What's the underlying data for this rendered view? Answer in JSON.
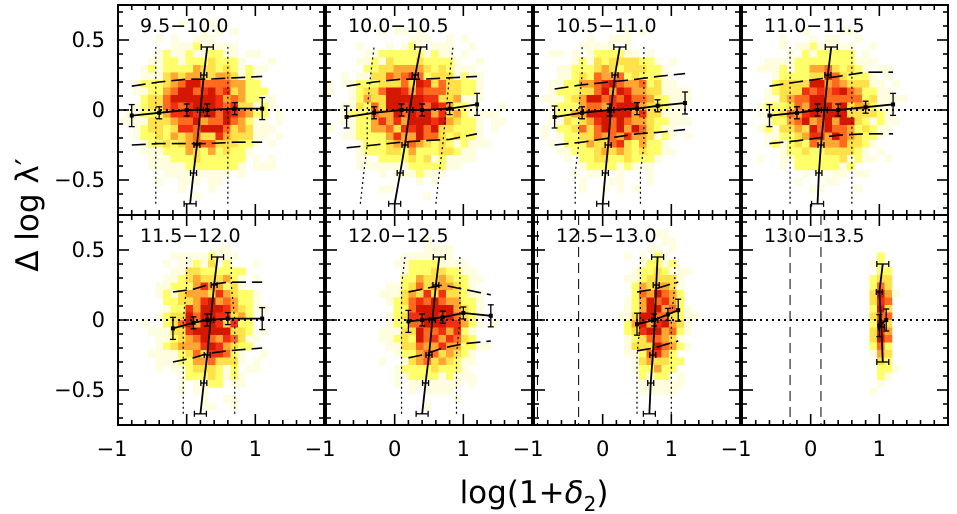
{
  "chart_data": {
    "type": "heatmap",
    "xlabel_prefix": "log(1+",
    "xlabel_symbol": "δ",
    "xlabel_sub": "2",
    "xlabel_suffix": ")",
    "ylabel_main": "Δ log λ",
    "ylabel_prime": "′",
    "xlim": [
      -1,
      2.0
    ],
    "ylim": [
      -0.75,
      0.75
    ],
    "x_ticks": [
      -1,
      0,
      1
    ],
    "x_tick_labels": [
      "−1",
      "0",
      "1"
    ],
    "y_ticks": [
      -0.5,
      0,
      0.5
    ],
    "y_tick_labels": [
      "−0.5",
      "0",
      "0.5"
    ],
    "grid": false,
    "colormap": [
      "#fffde0",
      "#ffff6a",
      "#ffe14a",
      "#ffa633",
      "#ff6a1e",
      "#f03010",
      "#d41800"
    ],
    "panels": [
      {
        "label": "9.5−10.0",
        "x_center": 0.2,
        "x_sigma": 0.45,
        "y_sigma": 0.22,
        "binned_x": [
          -0.8,
          -0.4,
          0.0,
          0.3,
          0.7,
          1.1
        ],
        "binned_median": [
          -0.04,
          -0.02,
          0.0,
          0.0,
          0.01,
          0.01
        ],
        "binned_p16": [
          -0.25,
          -0.24,
          -0.24,
          -0.24,
          -0.23,
          -0.23
        ],
        "binned_p84": [
          0.17,
          0.2,
          0.22,
          0.22,
          0.23,
          0.24
        ],
        "binned_y": [
          -0.67,
          -0.45,
          -0.25,
          0.0,
          0.25,
          0.45
        ],
        "binned_x_median": [
          0.05,
          0.1,
          0.15,
          0.2,
          0.25,
          0.3
        ],
        "binned_x_lo": [
          -0.45,
          -0.45,
          -0.45,
          -0.45,
          -0.45,
          -0.45
        ],
        "binned_x_hi": [
          0.6,
          0.6,
          0.6,
          0.6,
          0.6,
          0.6
        ],
        "vlines": []
      },
      {
        "label": "10.0−10.5",
        "x_center": 0.25,
        "x_sigma": 0.45,
        "y_sigma": 0.22,
        "binned_x": [
          -0.7,
          -0.3,
          0.1,
          0.4,
          0.8,
          1.2
        ],
        "binned_median": [
          -0.05,
          -0.02,
          0.0,
          0.0,
          0.01,
          0.04
        ],
        "binned_p16": [
          -0.27,
          -0.25,
          -0.23,
          -0.22,
          -0.21,
          -0.17
        ],
        "binned_p84": [
          0.17,
          0.2,
          0.22,
          0.22,
          0.23,
          0.24
        ],
        "binned_y": [
          -0.67,
          -0.45,
          -0.25,
          0.0,
          0.25,
          0.45
        ],
        "binned_x_median": [
          0.0,
          0.08,
          0.15,
          0.22,
          0.3,
          0.38
        ],
        "binned_x_lo": [
          -0.5,
          -0.45,
          -0.4,
          -0.4,
          -0.35,
          -0.3
        ],
        "binned_x_hi": [
          0.6,
          0.65,
          0.7,
          0.75,
          0.8,
          0.85
        ],
        "vlines": []
      },
      {
        "label": "10.5−11.0",
        "x_center": 0.15,
        "x_sigma": 0.4,
        "y_sigma": 0.22,
        "binned_x": [
          -0.7,
          -0.3,
          0.1,
          0.5,
          0.8,
          1.2
        ],
        "binned_median": [
          -0.05,
          -0.02,
          0.0,
          0.01,
          0.03,
          0.05
        ],
        "binned_p16": [
          -0.25,
          -0.23,
          -0.2,
          -0.17,
          -0.16,
          -0.14
        ],
        "binned_p84": [
          0.15,
          0.18,
          0.2,
          0.22,
          0.24,
          0.26
        ],
        "binned_y": [
          -0.67,
          -0.45,
          -0.25,
          0.0,
          0.25,
          0.45
        ],
        "binned_x_median": [
          0.0,
          0.04,
          0.08,
          0.12,
          0.18,
          0.25
        ],
        "binned_x_lo": [
          -0.4,
          -0.4,
          -0.35,
          -0.35,
          -0.3,
          -0.3
        ],
        "binned_x_hi": [
          0.55,
          0.55,
          0.6,
          0.6,
          0.6,
          0.6
        ],
        "vlines": []
      },
      {
        "label": "11.0−11.5",
        "x_center": 0.2,
        "x_sigma": 0.4,
        "y_sigma": 0.22,
        "binned_x": [
          -0.6,
          -0.2,
          0.1,
          0.4,
          0.8,
          1.2
        ],
        "binned_median": [
          -0.04,
          -0.02,
          0.0,
          0.0,
          0.02,
          0.04
        ],
        "binned_p16": [
          -0.24,
          -0.22,
          -0.2,
          -0.18,
          -0.17,
          -0.17
        ],
        "binned_p84": [
          0.17,
          0.2,
          0.22,
          0.24,
          0.27,
          0.27
        ],
        "binned_y": [
          -0.67,
          -0.45,
          -0.25,
          0.0,
          0.25,
          0.45
        ],
        "binned_x_median": [
          0.1,
          0.12,
          0.15,
          0.2,
          0.25,
          0.3
        ],
        "binned_x_lo": [
          -0.3,
          -0.3,
          -0.3,
          -0.3,
          -0.3,
          -0.3
        ],
        "binned_x_hi": [
          0.6,
          0.6,
          0.6,
          0.6,
          0.6,
          0.6
        ],
        "vlines": []
      },
      {
        "label": "11.5−12.0",
        "x_center": 0.3,
        "x_sigma": 0.32,
        "y_sigma": 0.23,
        "binned_x": [
          -0.2,
          0.1,
          0.3,
          0.6,
          1.1
        ],
        "binned_median": [
          -0.06,
          -0.02,
          0.0,
          0.01,
          0.01
        ],
        "binned_p16": [
          -0.3,
          -0.27,
          -0.24,
          -0.22,
          -0.2
        ],
        "binned_p84": [
          0.2,
          0.22,
          0.25,
          0.27,
          0.27
        ],
        "binned_y": [
          -0.67,
          -0.45,
          -0.25,
          0.0,
          0.25,
          0.45
        ],
        "binned_x_median": [
          0.2,
          0.25,
          0.3,
          0.35,
          0.4,
          0.45
        ],
        "binned_x_lo": [
          -0.05,
          -0.05,
          -0.05,
          -0.05,
          0.0,
          0.0
        ],
        "binned_x_hi": [
          0.7,
          0.7,
          0.7,
          0.7,
          0.65,
          0.65
        ],
        "vlines": []
      },
      {
        "label": "12.0−12.5",
        "x_center": 0.55,
        "x_sigma": 0.3,
        "y_sigma": 0.23,
        "binned_x": [
          0.2,
          0.4,
          0.7,
          1.0,
          1.4
        ],
        "binned_median": [
          -0.01,
          0.0,
          0.02,
          0.05,
          0.03
        ],
        "binned_p16": [
          -0.27,
          -0.25,
          -0.2,
          -0.17,
          -0.15
        ],
        "binned_p84": [
          0.2,
          0.22,
          0.25,
          0.22,
          0.18
        ],
        "binned_y": [
          -0.67,
          -0.45,
          -0.25,
          0.0,
          0.25,
          0.45
        ],
        "binned_x_median": [
          0.4,
          0.45,
          0.5,
          0.55,
          0.6,
          0.65
        ],
        "binned_x_lo": [
          0.1,
          0.1,
          0.1,
          0.1,
          0.1,
          0.15
        ],
        "binned_x_hi": [
          0.9,
          0.9,
          0.9,
          0.95,
          0.95,
          0.95
        ],
        "vlines": [
          -1.0
        ]
      },
      {
        "label": "12.5−13.0",
        "x_center": 0.75,
        "x_sigma": 0.2,
        "y_sigma": 0.23,
        "binned_x": [
          0.5,
          0.75,
          0.95,
          1.1
        ],
        "binned_median": [
          -0.03,
          0.0,
          0.04,
          0.07
        ],
        "binned_p16": [
          -0.22,
          -0.2,
          -0.17,
          -0.15
        ],
        "binned_p84": [
          0.2,
          0.22,
          0.25,
          0.27
        ],
        "binned_y": [
          -0.67,
          -0.45,
          -0.25,
          0.0,
          0.25,
          0.45
        ],
        "binned_x_median": [
          0.68,
          0.7,
          0.73,
          0.76,
          0.78,
          0.8
        ],
        "binned_x_lo": [
          0.5,
          0.5,
          0.5,
          0.55,
          0.55,
          0.55
        ],
        "binned_x_hi": [
          1.0,
          1.0,
          1.0,
          1.0,
          1.05,
          1.05
        ],
        "vlines": [
          -0.95,
          -0.35
        ]
      },
      {
        "label": "13.0−13.5",
        "x_center": 1.0,
        "x_sigma": 0.08,
        "y_sigma": 0.23,
        "binned_x": [
          1.0,
          1.1
        ],
        "binned_median": [
          -0.04,
          0.0
        ],
        "binned_p16": [],
        "binned_p84": [],
        "binned_y": [
          -0.3,
          -0.05,
          0.2,
          0.4
        ],
        "binned_x_median": [
          1.05,
          1.03,
          1.0,
          1.05
        ],
        "binned_x_lo": [],
        "binned_x_hi": [],
        "vlines": [
          -0.3,
          0.15
        ]
      }
    ]
  }
}
